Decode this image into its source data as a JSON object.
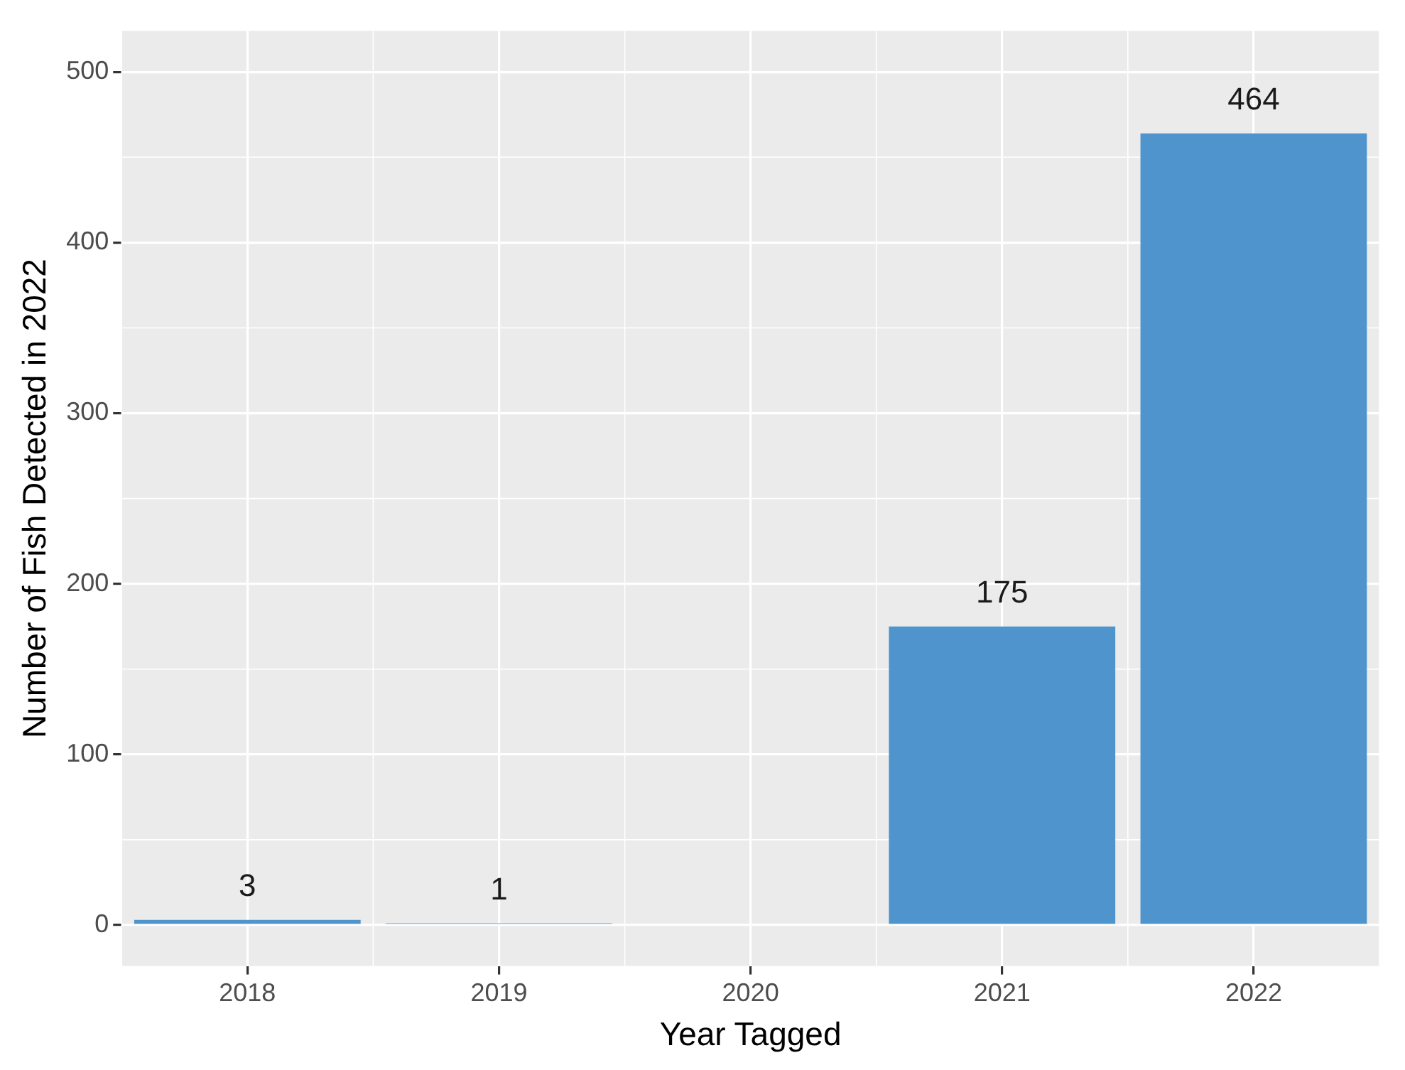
{
  "chart_data": {
    "type": "bar",
    "xlabel": "Year Tagged",
    "ylabel": "Number of Fish Detected in 2022",
    "categories": [
      "2018",
      "2019",
      "2020",
      "2021",
      "2022"
    ],
    "values": [
      3,
      1,
      null,
      175,
      464
    ],
    "color": "#4f94cd",
    "ylim": [
      -24,
      524
    ],
    "yticks": [
      0,
      100,
      200,
      300,
      400,
      500
    ],
    "grid": true,
    "data_labels": true
  }
}
